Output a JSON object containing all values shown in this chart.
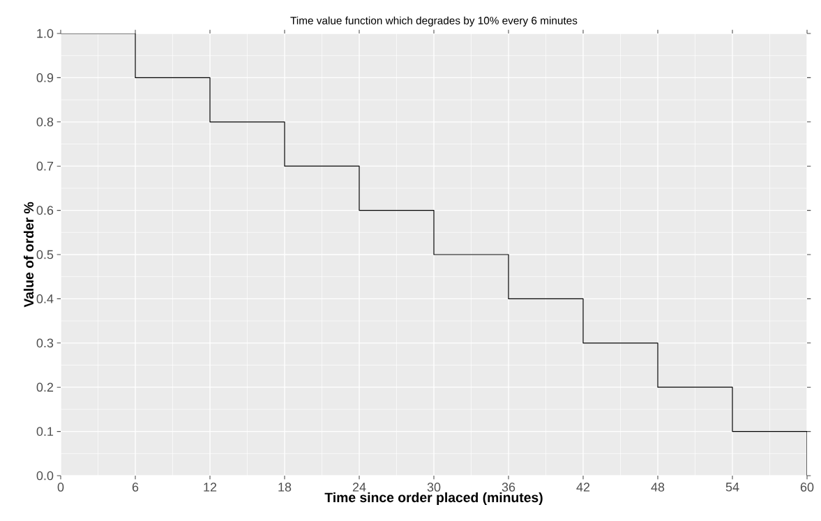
{
  "chart_data": {
    "type": "step",
    "title": "Time value function which degrades by 10% every 6 minutes",
    "xlabel": "Time since order placed (minutes)",
    "ylabel": "Value of order %",
    "x": [
      0,
      6,
      12,
      18,
      24,
      30,
      36,
      42,
      48,
      54,
      60
    ],
    "values": [
      1.0,
      0.9,
      0.8,
      0.7,
      0.6,
      0.5,
      0.4,
      0.3,
      0.2,
      0.1,
      0.0
    ],
    "color": "#000000",
    "xlim": [
      0,
      60
    ],
    "xticks": [
      0,
      6,
      12,
      18,
      24,
      30,
      36,
      42,
      48,
      54,
      60
    ],
    "ylim": [
      0,
      1
    ],
    "yticks": [
      {
        "value": 0,
        "label": "0.0"
      },
      0.1,
      0.2,
      0.3,
      0.4,
      0.5,
      0.6,
      0.7,
      0.8,
      0.9,
      {
        "value": 1,
        "label": "1.0"
      }
    ],
    "grid": true
  }
}
